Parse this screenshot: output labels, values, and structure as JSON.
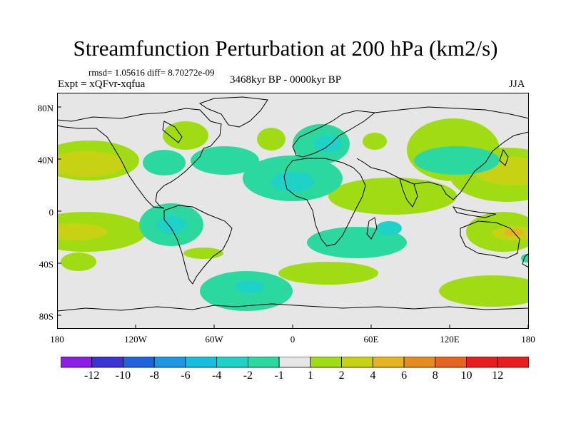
{
  "title": "Streamfunction Perturbation at 200 hPa (km2/s)",
  "stats": "rmsd= 1.05616 diff= 8.70272e-09",
  "experiment": "Expt = xQFvr-xqfua",
  "period": "3468kyr BP - 0000kyr BP",
  "season": "JJA",
  "lat_ticks": [
    "80N",
    "40N",
    "0",
    "40S",
    "80S"
  ],
  "lon_ticks": [
    "180",
    "120W",
    "60W",
    "0",
    "60E",
    "120E",
    "180"
  ],
  "colorbar": {
    "labels": [
      "-12",
      "-10",
      "-8",
      "-6",
      "-4",
      "-2",
      "-1",
      "1",
      "2",
      "4",
      "6",
      "8",
      "10",
      "12"
    ],
    "colors": [
      "#8c1ee8",
      "#3c32d6",
      "#1e64dc",
      "#1e96e6",
      "#14bee0",
      "#1ed2c8",
      "#2ad8a0",
      "#e6e6e6",
      "#a0dc14",
      "#c8d214",
      "#e6b41e",
      "#e68c1e",
      "#e6641e",
      "#e61e1e"
    ]
  },
  "map_colors": {
    "background": "#e6e6e6",
    "coast": "#000000",
    "neg1": "#2ad8a0",
    "neg2": "#1ed2c8",
    "pos1": "#a0dc14",
    "pos2": "#c8d214",
    "pos3": "#e6b41e"
  }
}
